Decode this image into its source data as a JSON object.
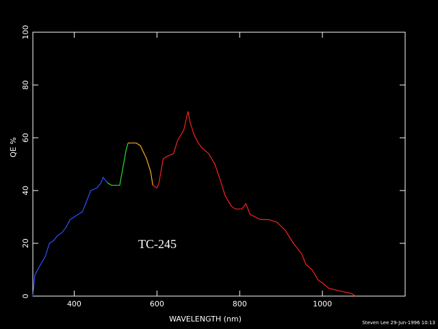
{
  "chart_data": {
    "type": "line",
    "xlabel": "WAVELENGTH (nm)",
    "ylabel": "QE %",
    "annotation": "TC-245",
    "footer": "Steven Lee 29-Jun-1996 10:13",
    "xlim": [
      300,
      1200
    ],
    "xticks": [
      400,
      600,
      800,
      1000
    ],
    "ylim": [
      0,
      100
    ],
    "yticks": [
      0,
      20,
      40,
      60,
      80,
      100
    ],
    "series": [
      {
        "color": "#3050ff",
        "x": [
          300,
          305,
          315,
          330,
          340,
          350,
          360,
          370,
          380,
          390,
          410,
          420,
          430,
          440,
          455,
          465,
          470,
          480
        ],
        "values": [
          0,
          8,
          11,
          15,
          20,
          21,
          23,
          24,
          26,
          29,
          31,
          32,
          36,
          40,
          41,
          43,
          45,
          43
        ]
      },
      {
        "color": "#30e030",
        "x": [
          480,
          490,
          510,
          525,
          530
        ],
        "values": [
          43,
          42,
          42,
          55,
          58
        ]
      },
      {
        "color": "#ffb020",
        "x": [
          530,
          550,
          560,
          575,
          585,
          590
        ],
        "values": [
          58,
          58,
          57,
          52,
          47,
          42
        ]
      },
      {
        "color": "#ff2020",
        "x": [
          590,
          600,
          605,
          615,
          625,
          640,
          650,
          665,
          675,
          680,
          690,
          700,
          710,
          725,
          740,
          755,
          765,
          780,
          790,
          805,
          815,
          825,
          850,
          870,
          890,
          910,
          930,
          950,
          960,
          975,
          990,
          1000,
          1015,
          1040,
          1070,
          1080
        ],
        "values": [
          42,
          41,
          43,
          52,
          53,
          54,
          59,
          63,
          70,
          66,
          61,
          58,
          56,
          54,
          50,
          43,
          38,
          34,
          33,
          33,
          35,
          31,
          29,
          29,
          28,
          25,
          20,
          16,
          12,
          10,
          6,
          5,
          3,
          2,
          1,
          0
        ]
      }
    ]
  }
}
